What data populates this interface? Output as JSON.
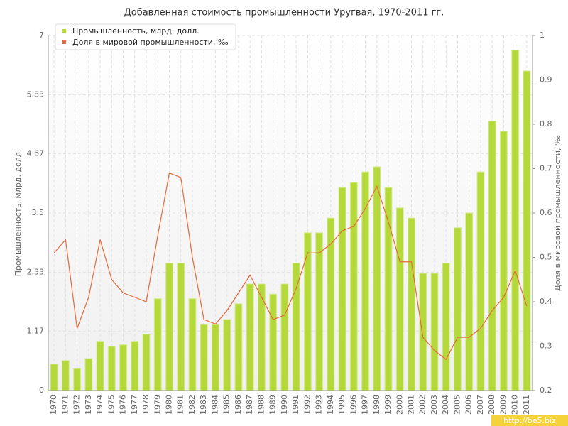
{
  "chart_data": {
    "type": "bar_line",
    "title": "Добавленная стоимость промышленности Уругвая, 1970-2011 гг.",
    "y_label": "Промышленность, млрд. долл.",
    "y2_label": "Доля в мировой промышленности, ‰",
    "watermark": "http://be5.biz",
    "categories": [
      "1970",
      "1971",
      "1972",
      "1973",
      "1974",
      "1975",
      "1976",
      "1977",
      "1978",
      "1979",
      "1980",
      "1981",
      "1982",
      "1983",
      "1984",
      "1985",
      "1986",
      "1987",
      "1988",
      "1989",
      "1990",
      "1991",
      "1992",
      "1993",
      "1994",
      "1995",
      "1996",
      "1997",
      "1998",
      "1999",
      "2000",
      "2001",
      "2002",
      "2003",
      "2004",
      "2005",
      "2006",
      "2007",
      "2008",
      "2009",
      "2010",
      "2011"
    ],
    "series": [
      {
        "name": "Промышленность, млрд. долл.",
        "color": "#b5d93a",
        "kind": "bar",
        "values": [
          0.52,
          0.59,
          0.43,
          0.63,
          0.97,
          0.87,
          0.9,
          0.97,
          1.11,
          1.81,
          2.51,
          2.51,
          1.81,
          1.3,
          1.3,
          1.4,
          1.71,
          2.1,
          2.1,
          1.9,
          2.1,
          2.51,
          3.11,
          3.11,
          3.4,
          4.0,
          4.1,
          4.31,
          4.41,
          4.0,
          3.6,
          3.4,
          2.31,
          2.31,
          2.51,
          3.21,
          3.5,
          4.31,
          5.31,
          5.11,
          6.71,
          6.3
        ]
      },
      {
        "name": "Доля в мировой промышленности, ‰",
        "color": "#e8683a",
        "kind": "line",
        "axis": "y2",
        "values": [
          0.51,
          0.54,
          0.34,
          0.41,
          0.54,
          0.45,
          0.42,
          0.41,
          0.4,
          0.55,
          0.69,
          0.68,
          0.5,
          0.36,
          0.35,
          0.38,
          0.42,
          0.46,
          0.41,
          0.36,
          0.37,
          0.43,
          0.51,
          0.51,
          0.53,
          0.56,
          0.57,
          0.61,
          0.66,
          0.58,
          0.49,
          0.49,
          0.32,
          0.29,
          0.27,
          0.32,
          0.32,
          0.34,
          0.38,
          0.41,
          0.47,
          0.39
        ]
      }
    ],
    "ylim": [
      0,
      7
    ],
    "yticks": [
      0,
      1.17,
      2.33,
      3.5,
      4.67,
      5.83,
      7
    ],
    "y2lim": [
      0.2,
      1
    ],
    "y2ticks": [
      0.2,
      0.3,
      0.4,
      0.5,
      0.6,
      0.7,
      0.8,
      0.9,
      1
    ],
    "grid": true
  }
}
